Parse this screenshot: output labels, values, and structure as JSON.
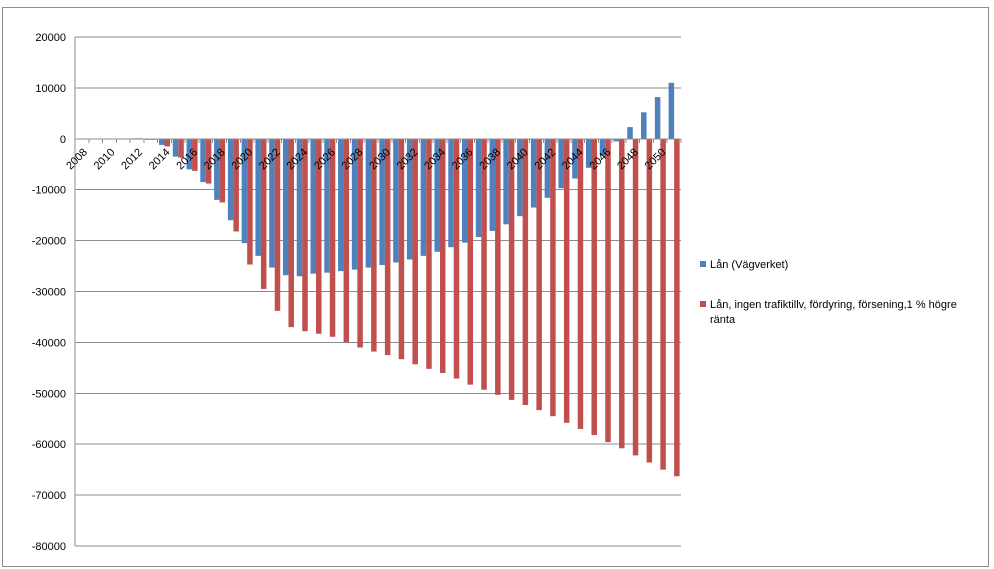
{
  "chart_data": {
    "type": "bar",
    "ylim": [
      -80000,
      20000
    ],
    "yticks": [
      20000,
      10000,
      0,
      -10000,
      -20000,
      -30000,
      -40000,
      -50000,
      -60000,
      -70000,
      -80000
    ],
    "ytick_labels": [
      "20000",
      "10000",
      "0",
      "-10000",
      "-20000",
      "-30000",
      "-40000",
      "-50000",
      "-60000",
      "-70000",
      "-80000"
    ],
    "grid": true,
    "legend_position": "right",
    "categories": [
      "2008",
      "2009",
      "2010",
      "2011",
      "2012",
      "2013",
      "2014",
      "2015",
      "2016",
      "2017",
      "2018",
      "2019",
      "2020",
      "2021",
      "2022",
      "2023",
      "2024",
      "2025",
      "2026",
      "2027",
      "2028",
      "2029",
      "2030",
      "2031",
      "2032",
      "2033",
      "2034",
      "2035",
      "2036",
      "2037",
      "2038",
      "2039",
      "2040",
      "2041",
      "2042",
      "2043",
      "2044",
      "2045",
      "2046",
      "2047",
      "2048",
      "2049",
      "2050",
      "2051"
    ],
    "xtick_labels": [
      "2008",
      "2010",
      "2012",
      "2014",
      "2016",
      "2018",
      "2020",
      "2022",
      "2024",
      "2026",
      "2028",
      "2030",
      "2032",
      "2034",
      "2036",
      "2038",
      "2040",
      "2042",
      "2044",
      "2046",
      "2048",
      "2050"
    ],
    "series": [
      {
        "name": "Lån (Vägverket)",
        "color": "#4f81bd",
        "values": [
          0,
          0,
          0,
          0,
          100,
          -200,
          -1200,
          -3500,
          -6000,
          -8500,
          -12000,
          -16000,
          -20500,
          -23000,
          -25300,
          -26800,
          -27000,
          -26500,
          -26300,
          -26000,
          -25700,
          -25300,
          -24800,
          -24300,
          -23700,
          -23000,
          -22200,
          -21300,
          -20400,
          -19300,
          -18100,
          -16800,
          -15200,
          -13500,
          -11600,
          -9700,
          -7800,
          -5700,
          -3300,
          -500,
          2300,
          5200,
          8200,
          11000
        ]
      },
      {
        "name": "Lån, ingen trafiktillv, fördyring, försening,1 % högre ränta",
        "color": "#c0504d",
        "values": [
          0,
          0,
          0,
          0,
          100,
          -200,
          -1500,
          -3700,
          -6300,
          -8800,
          -12500,
          -18200,
          -24700,
          -29500,
          -33800,
          -37000,
          -37800,
          -38300,
          -38900,
          -40000,
          -41000,
          -41800,
          -42500,
          -43300,
          -44300,
          -45200,
          -46000,
          -47100,
          -48300,
          -49300,
          -50300,
          -51300,
          -52300,
          -53300,
          -54500,
          -55800,
          -57000,
          -58200,
          -59600,
          -60800,
          -62200,
          -63600,
          -65000,
          -66300
        ]
      }
    ]
  }
}
